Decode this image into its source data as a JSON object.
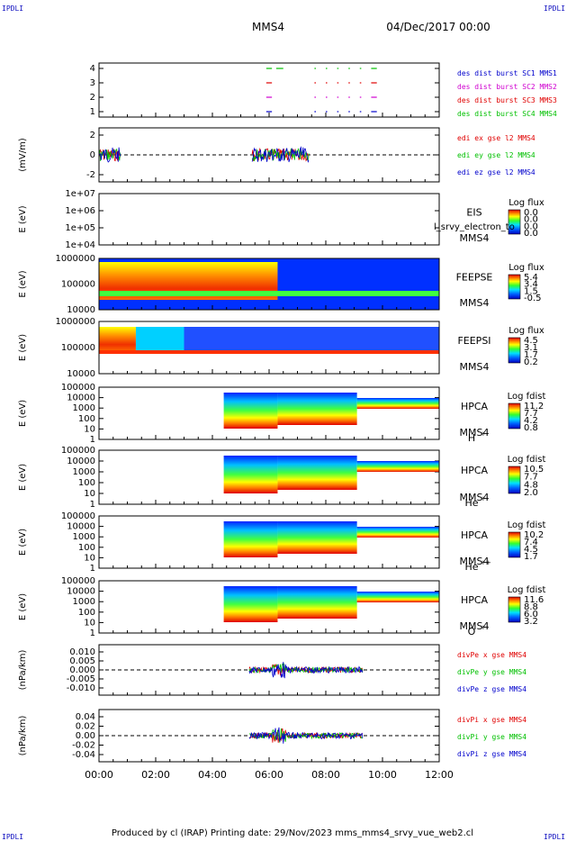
{
  "corner_left": "IPDLI",
  "corner_right": "IPDLI",
  "corner_bottom_left": "IPDLI",
  "corner_bottom_right": "IPDLI",
  "header": {
    "spacecraft": "MMS4",
    "date": "04/Dec/2017 00:00"
  },
  "footer": "Produced by cl (IRAP)   Printing date: 29/Nov/2023   mms_mms4_srvy_vue_web2.cl",
  "time_axis": {
    "ticks": [
      "00:00",
      "02:00",
      "04:00",
      "06:00",
      "08:00",
      "10:00",
      "12:00"
    ]
  },
  "colors": {
    "red": "#e00000",
    "green": "#00c000",
    "blue": "#0000cc",
    "magenta": "#d000d0",
    "text_blue": "#1010c0"
  },
  "chart_data": [
    {
      "type": "scatter",
      "id": "burst",
      "yticks": [
        "4",
        "3",
        "2",
        "1"
      ],
      "ylim": [
        0.5,
        4.5
      ],
      "legend": [
        {
          "text": "des dist burst SC1 MMS1",
          "color": "#0000cc"
        },
        {
          "text": "des dist burst SC2 MMS2",
          "color": "#d000d0"
        },
        {
          "text": "des dist burst SC3 MMS3",
          "color": "#e00000"
        },
        {
          "text": "des dist burst SC4 MMS4",
          "color": "#00c000"
        }
      ],
      "intervals_hours": [
        [
          5.9,
          6.1
        ],
        [
          6.25,
          6.5
        ],
        [
          7.6,
          7.65
        ],
        [
          8.0,
          8.05
        ],
        [
          8.4,
          8.45
        ],
        [
          8.8,
          8.85
        ],
        [
          9.2,
          9.25
        ],
        [
          9.6,
          9.8
        ]
      ]
    },
    {
      "type": "line",
      "id": "edi",
      "ylabel": "(mV/m)",
      "yticks": [
        "2",
        "0",
        "-2"
      ],
      "ylim": [
        -3.5,
        3.5
      ],
      "legend": [
        {
          "text": "edi ex gse l2 MMS4",
          "color": "#e00000"
        },
        {
          "text": "edi ey gse l2 MMS4",
          "color": "#00c000"
        },
        {
          "text": "edi ez gse l2 MMS4",
          "color": "#0000cc"
        }
      ],
      "active_hours": [
        [
          0.0,
          0.75
        ],
        [
          5.4,
          7.4
        ]
      ]
    },
    {
      "type": "heatmap",
      "id": "eis",
      "ylabel": "E (eV)",
      "yticks": [
        "1e+07",
        "1e+06",
        "1e+05",
        "1e+04"
      ],
      "name": "EIS",
      "sc": "MMS4",
      "overlay": "l_srvy_electron_to",
      "cbar_title": "Log flux",
      "cbar_ticks": [
        "0.0",
        "0.0",
        "0.0",
        "0.0"
      ]
    },
    {
      "type": "heatmap",
      "id": "feepse",
      "ylabel": "E (eV)",
      "yticks": [
        "1000000",
        "100000",
        "10000"
      ],
      "name": "FEEPSE",
      "sc": "MMS4",
      "cbar_title": "Log flux",
      "cbar_ticks": [
        "5.4",
        "3.4",
        "1.5",
        "-0.5"
      ]
    },
    {
      "type": "heatmap",
      "id": "feepsi",
      "ylabel": "E (eV)",
      "yticks": [
        "1000000",
        "100000",
        "10000"
      ],
      "name": "FEEPSI",
      "sc": "MMS4",
      "cbar_title": "Log flux",
      "cbar_ticks": [
        "4.5",
        "3.1",
        "1.7",
        "0.2"
      ]
    },
    {
      "type": "heatmap",
      "id": "hpca_h",
      "ylabel": "E (eV)",
      "yticks": [
        "100000",
        "10000",
        "1000",
        "100",
        "10",
        "1"
      ],
      "name": "HPCA",
      "sc": "MMS4",
      "species": "H",
      "charge": "+",
      "cbar_title": "Log fdist",
      "cbar_ticks": [
        "11.2",
        "7.7",
        "4.2",
        "0.8"
      ]
    },
    {
      "type": "heatmap",
      "id": "hpca_he",
      "ylabel": "E (eV)",
      "yticks": [
        "100000",
        "10000",
        "1000",
        "100",
        "10",
        "1"
      ],
      "name": "HPCA",
      "sc": "MMS4",
      "species": "He",
      "charge": "+",
      "cbar_title": "Log fdist",
      "cbar_ticks": [
        "10.5",
        "7.7",
        "4.8",
        "2.0"
      ]
    },
    {
      "type": "heatmap",
      "id": "hpca_he2",
      "ylabel": "E (eV)",
      "yticks": [
        "100000",
        "10000",
        "1000",
        "100",
        "10",
        "1"
      ],
      "name": "HPCA",
      "sc": "MMS4",
      "species": "He",
      "charge": "++",
      "cbar_title": "Log fdist",
      "cbar_ticks": [
        "10.2",
        "7.4",
        "4.5",
        "1.7"
      ]
    },
    {
      "type": "heatmap",
      "id": "hpca_o",
      "ylabel": "E (eV)",
      "yticks": [
        "100000",
        "10000",
        "1000",
        "100",
        "10",
        "1"
      ],
      "name": "HPCA",
      "sc": "MMS4",
      "species": "O",
      "charge": "+",
      "cbar_title": "Log fdist",
      "cbar_ticks": [
        "11.6",
        "8.8",
        "6.0",
        "3.2"
      ]
    },
    {
      "type": "line",
      "id": "divpe",
      "ylabel": "(nPa/km)",
      "yticks": [
        "0.010",
        "0.005",
        "0.000",
        "-0.005",
        "-0.010"
      ],
      "ylim": [
        -0.013,
        0.011
      ],
      "legend": [
        {
          "text": "divPe x gse MMS4",
          "color": "#e00000"
        },
        {
          "text": "divPe y gse MMS4",
          "color": "#00c000"
        },
        {
          "text": "divPe z gse MMS4",
          "color": "#0000cc"
        }
      ],
      "active_hours": [
        [
          5.3,
          9.3
        ]
      ]
    },
    {
      "type": "line",
      "id": "divpi",
      "ylabel": "(nPa/km)",
      "yticks": [
        "0.04",
        "0.02",
        "0.00",
        "-0.02",
        "-0.04"
      ],
      "ylim": [
        -0.05,
        0.05
      ],
      "legend": [
        {
          "text": "divPi x gse MMS4",
          "color": "#e00000"
        },
        {
          "text": "divPi y gse MMS4",
          "color": "#00c000"
        },
        {
          "text": "divPi z gse MMS4",
          "color": "#0000cc"
        }
      ],
      "active_hours": [
        [
          5.3,
          9.3
        ]
      ]
    }
  ]
}
